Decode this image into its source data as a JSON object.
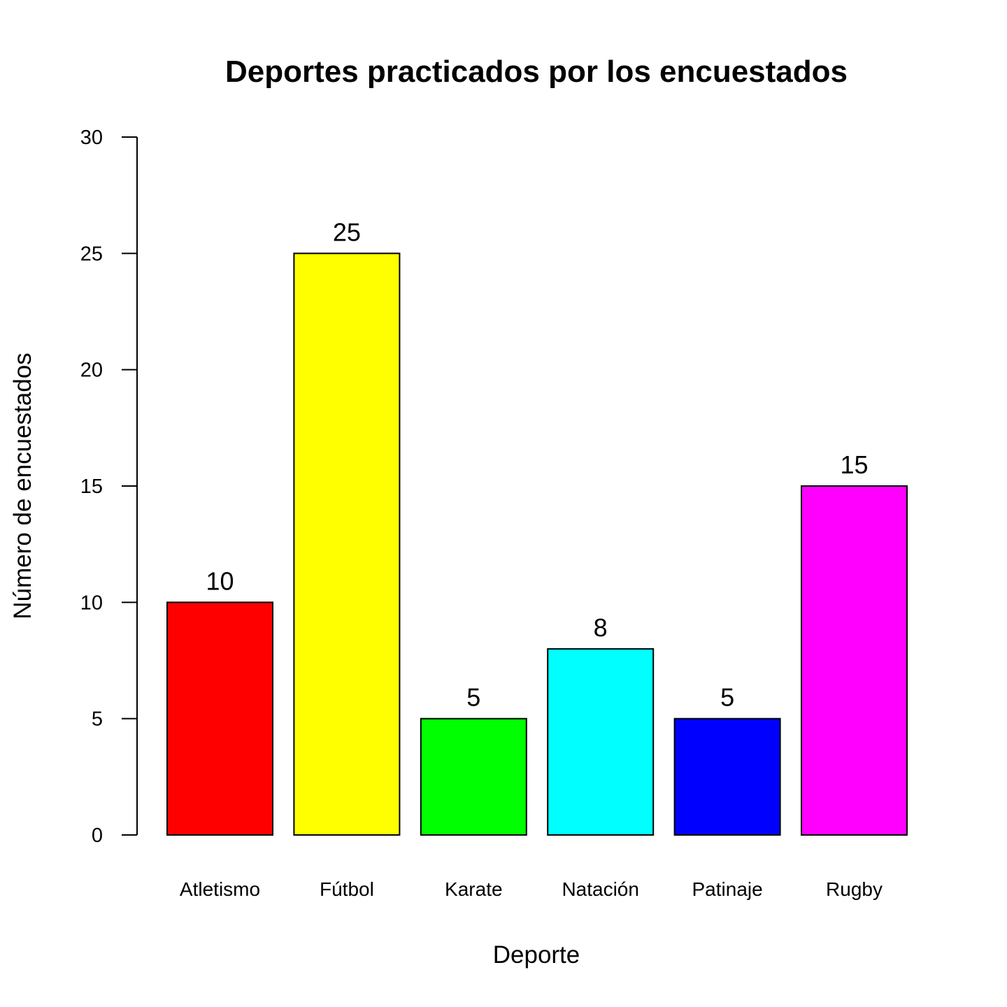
{
  "chart_data": {
    "type": "bar",
    "title": "Deportes practicados por los encuestados",
    "xlabel": "Deporte",
    "ylabel": "Número de encuestados",
    "categories": [
      "Atletismo",
      "Fútbol",
      "Karate",
      "Natación",
      "Patinaje",
      "Rugby"
    ],
    "values": [
      10,
      25,
      5,
      8,
      5,
      15
    ],
    "data_labels": [
      "10",
      "25",
      "5",
      "8",
      "5",
      "15"
    ],
    "colors": [
      "#ff0000",
      "#ffff00",
      "#00ff00",
      "#00ffff",
      "#0000ff",
      "#ff00ff"
    ],
    "ylim": [
      0,
      30
    ],
    "yticks": [
      0,
      5,
      10,
      15,
      20,
      25,
      30
    ],
    "ytick_labels": [
      "0",
      "5",
      "10",
      "15",
      "20",
      "25",
      "30"
    ],
    "grid": false,
    "legend": "none"
  }
}
